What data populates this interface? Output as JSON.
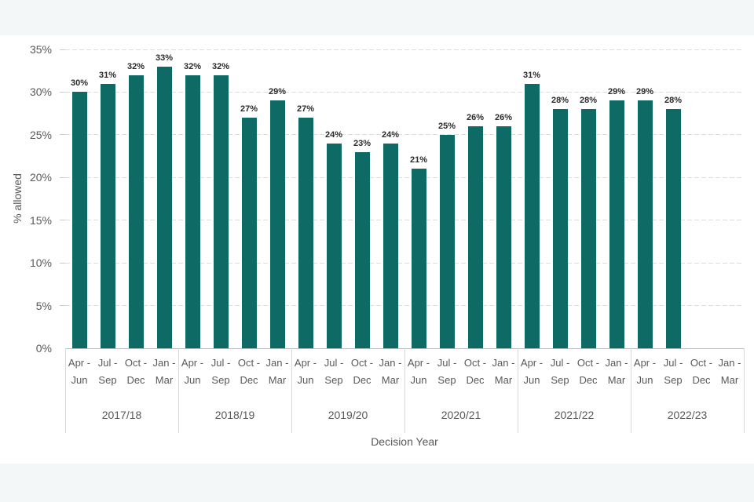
{
  "chart_data": {
    "type": "bar",
    "title": "",
    "xlabel": "Decision Year",
    "ylabel": "% allowed",
    "ylim": [
      0,
      35
    ],
    "ytick_step": 5,
    "ytick_labels": [
      "0%",
      "5%",
      "10%",
      "15%",
      "20%",
      "25%",
      "30%",
      "35%"
    ],
    "grid": "dashed horizontal",
    "legend": "none",
    "bar_color": "#0d6a65",
    "data_label_suffix": "%",
    "quarter_labels": [
      {
        "line1": "Apr -",
        "line2": "Jun"
      },
      {
        "line1": "Jul -",
        "line2": "Sep"
      },
      {
        "line1": "Oct -",
        "line2": "Dec"
      },
      {
        "line1": "Jan -",
        "line2": "Mar"
      }
    ],
    "groups": [
      {
        "year": "2017/18",
        "values": [
          30,
          31,
          32,
          33
        ]
      },
      {
        "year": "2018/19",
        "values": [
          32,
          32,
          27,
          29
        ]
      },
      {
        "year": "2019/20",
        "values": [
          27,
          24,
          23,
          24
        ]
      },
      {
        "year": "2020/21",
        "values": [
          21,
          25,
          26,
          26
        ]
      },
      {
        "year": "2021/22",
        "values": [
          31,
          28,
          28,
          29
        ]
      },
      {
        "year": "2022/23",
        "values": [
          29,
          28,
          null,
          null
        ]
      }
    ]
  }
}
